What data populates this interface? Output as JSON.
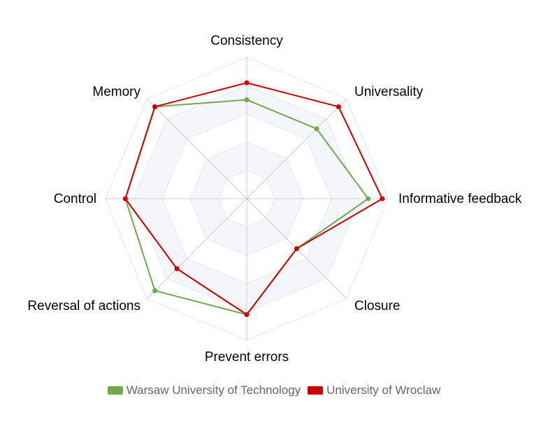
{
  "chart_data": {
    "type": "radar",
    "categories": [
      "Consistency",
      "Universality",
      "Informative feedback",
      "Closure",
      "Prevent errors",
      "Reversal of actions",
      "Control",
      "Memory"
    ],
    "rmax": 5,
    "ticks": 5,
    "grid": true,
    "legend_position": "bottom",
    "series": [
      {
        "name": "Warsaw University of Technology",
        "color": "#70a94c",
        "values": [
          3.5,
          3.5,
          4.3,
          2.5,
          4.1,
          4.6,
          4.3,
          4.6
        ]
      },
      {
        "name": "University of Wroclaw",
        "color": "#cc0000",
        "values": [
          4.1,
          4.6,
          4.8,
          2.5,
          4.1,
          3.5,
          4.3,
          4.6
        ]
      }
    ]
  }
}
